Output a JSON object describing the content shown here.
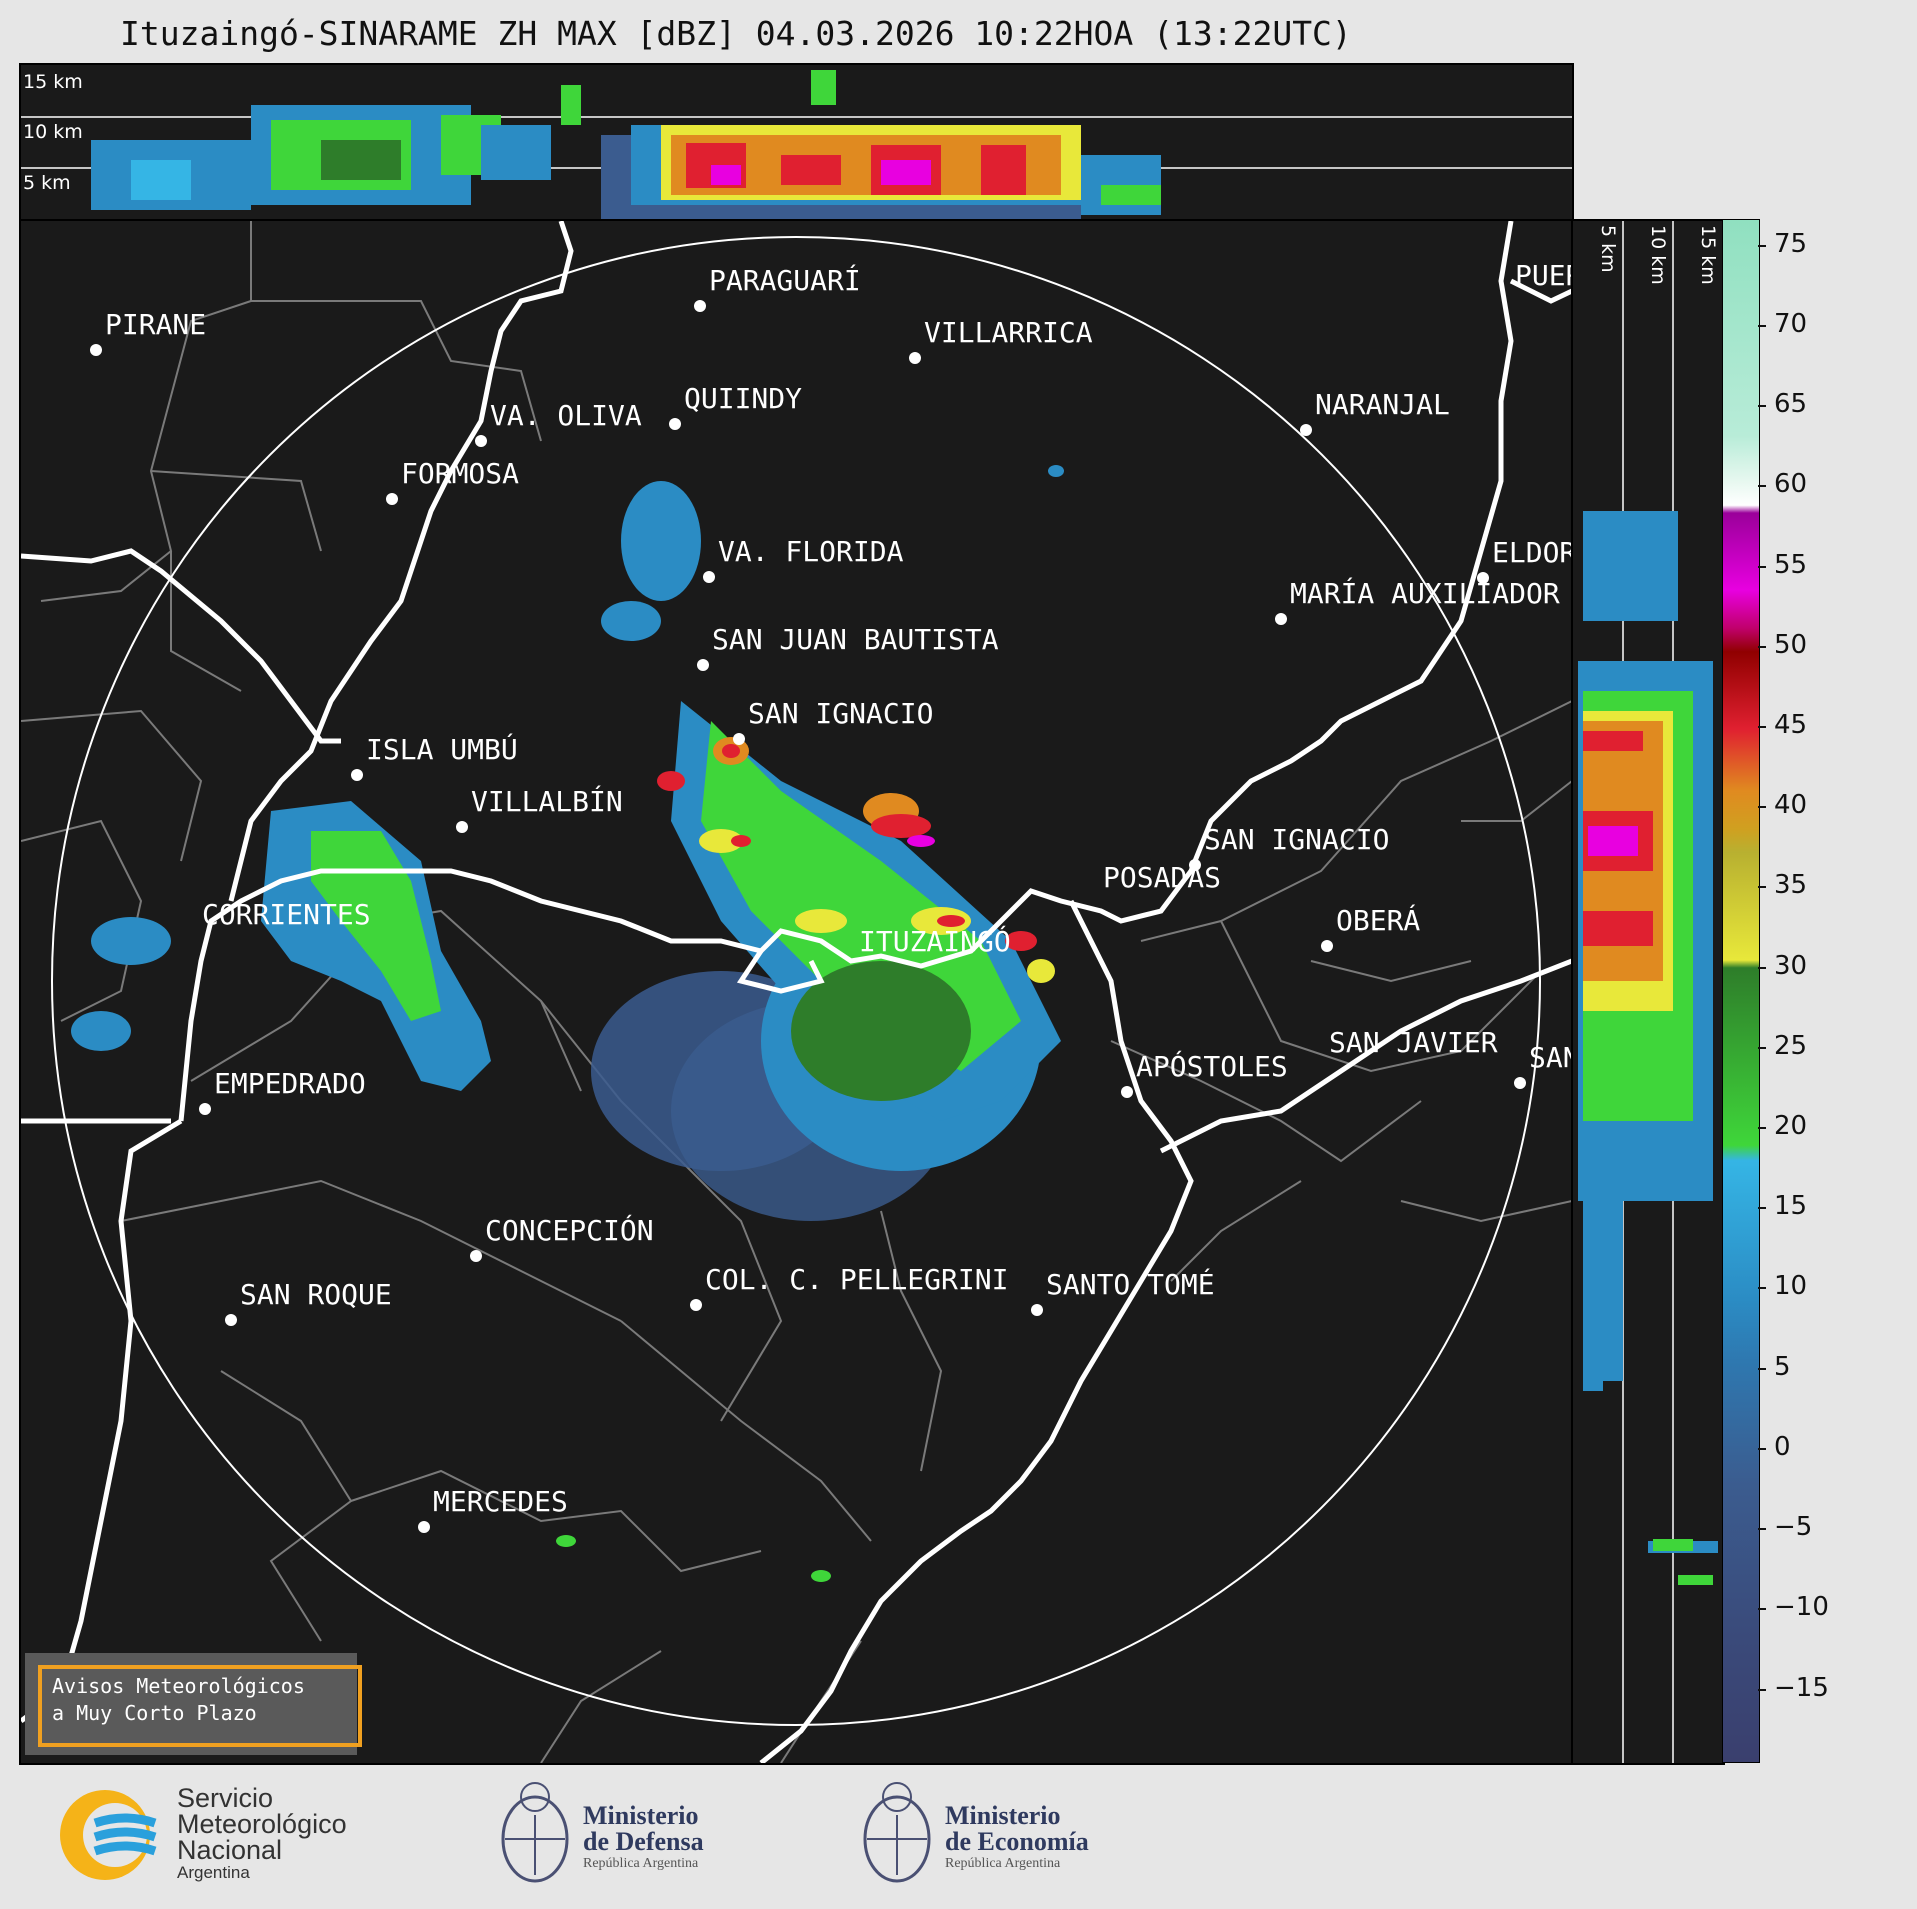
{
  "title": "Ituzaingó-SINARAME ZH MAX [dBZ] 04.03.2026 10:22HOA (13:22UTC)",
  "top_panel": {
    "altitudes": [
      "15 km",
      "10 km",
      "5 km"
    ]
  },
  "side_panel": {
    "altitudes": [
      "5 km",
      "10 km",
      "15 km"
    ]
  },
  "colorbar": {
    "unit": "dBZ",
    "ticks": [
      "75",
      "70",
      "65",
      "60",
      "55",
      "50",
      "45",
      "40",
      "35",
      "30",
      "25",
      "20",
      "15",
      "10",
      "5",
      "0",
      "−5",
      "−10",
      "−15"
    ],
    "colors": {
      "navy": "#3a3f6e",
      "slate": "#3b5c8f",
      "blue": "#2b8cc4",
      "cyan": "#35b5e5",
      "green": "#3fd63a",
      "dgreen": "#2e7d2a",
      "yellow": "#e8e83a",
      "olive": "#b8b030",
      "orange": "#e08a20",
      "red": "#e02030",
      "dred": "#900000",
      "pink": "#e800e0",
      "purple": "#9a009a",
      "white": "#ffffff",
      "mint": "#90e0c0"
    }
  },
  "cities": [
    {
      "name": "PIRANE"
    },
    {
      "name": "PARAGUARÍ"
    },
    {
      "name": "VILLARRICA"
    },
    {
      "name": "QUIINDY"
    },
    {
      "name": "VA. OLIVA"
    },
    {
      "name": "NARANJAL"
    },
    {
      "name": "FORMOSA"
    },
    {
      "name": "VA. FLORIDA"
    },
    {
      "name": "ELDOR"
    },
    {
      "name": "MARÍA AUXILIADOR"
    },
    {
      "name": "SAN JUAN BAUTISTA"
    },
    {
      "name": "SAN IGNACIO"
    },
    {
      "name": "ISLA UMBÚ"
    },
    {
      "name": "VILLALBÍN"
    },
    {
      "name": "SAN IGNACIO"
    },
    {
      "name": "POSADAS"
    },
    {
      "name": "CORRIENTES"
    },
    {
      "name": "ITUZAINGÓ"
    },
    {
      "name": "OBERÁ"
    },
    {
      "name": "EMPEDRADO"
    },
    {
      "name": "APÓSTOLES"
    },
    {
      "name": "SAN JAVIER"
    },
    {
      "name": "SAN"
    },
    {
      "name": "CONCEPCIÓN"
    },
    {
      "name": "COL. C. PELLEGRINI"
    },
    {
      "name": "SANTO TOMÉ"
    },
    {
      "name": "SAN ROQUE"
    },
    {
      "name": "MERCEDES"
    },
    {
      "name": "PUER"
    }
  ],
  "warning": {
    "line1": "Avisos Meteorológicos",
    "line2": "a Muy Corto Plazo"
  },
  "logos": {
    "smn": {
      "line1": "Servicio",
      "line2": "Meteorológico",
      "line3": "Nacional",
      "line4": "Argentina"
    },
    "defensa": {
      "line1": "Ministerio",
      "line2": "de Defensa",
      "line3": "República Argentina"
    },
    "economia": {
      "line1": "Ministerio",
      "line2": "de Economía",
      "line3": "República Argentina"
    }
  }
}
